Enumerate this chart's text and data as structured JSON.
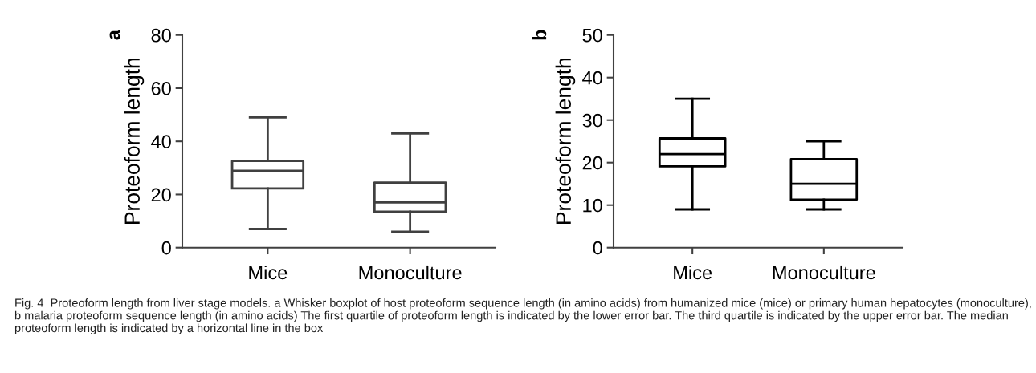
{
  "chart_data": [
    {
      "type": "box",
      "ylabel": "Proteoform length",
      "annotations": [
        "a",
        "Fig. 4  Proteoform length from liver stage models. a Whisker boxplot of host proteoform sequence length (in amino acids) from humanized mice (mice) or primary human hepatocytes (monoculture), b malaria proteoform sequence length (in amino acids) The first quartile of proteoform length is indicated by the lower error bar. The third quartile is indicated by the upper error bar. The median proteoform length is indicated by a horizontal line in the box"
      ],
      "categories": [
        "Mice",
        "Monoculture"
      ],
      "color": "#404040",
      "ylim": [
        0,
        80
      ],
      "yticks": [
        0,
        20,
        40,
        60,
        80
      ],
      "grid": false,
      "boxes": [
        {
          "low": 7,
          "q1": 22.3,
          "median": 28.9,
          "q3": 32.6,
          "high": 49
        },
        {
          "low": 6,
          "q1": 13.5,
          "median": 17,
          "q3": 24.5,
          "high": 43
        }
      ]
    },
    {
      "type": "box",
      "ylabel": "Proteoform length",
      "annotations": [
        "b"
      ],
      "categories": [
        "Mice",
        "Monoculture"
      ],
      "color": "#000000",
      "ylim": [
        0,
        50
      ],
      "yticks": [
        0,
        10,
        20,
        30,
        40,
        50
      ],
      "grid": false,
      "boxes": [
        {
          "low": 9,
          "q1": 19.1,
          "median": 22,
          "q3": 25.7,
          "high": 35
        },
        {
          "low": 9,
          "q1": 11.3,
          "median": 15,
          "q3": 20.8,
          "high": 25
        }
      ]
    }
  ]
}
